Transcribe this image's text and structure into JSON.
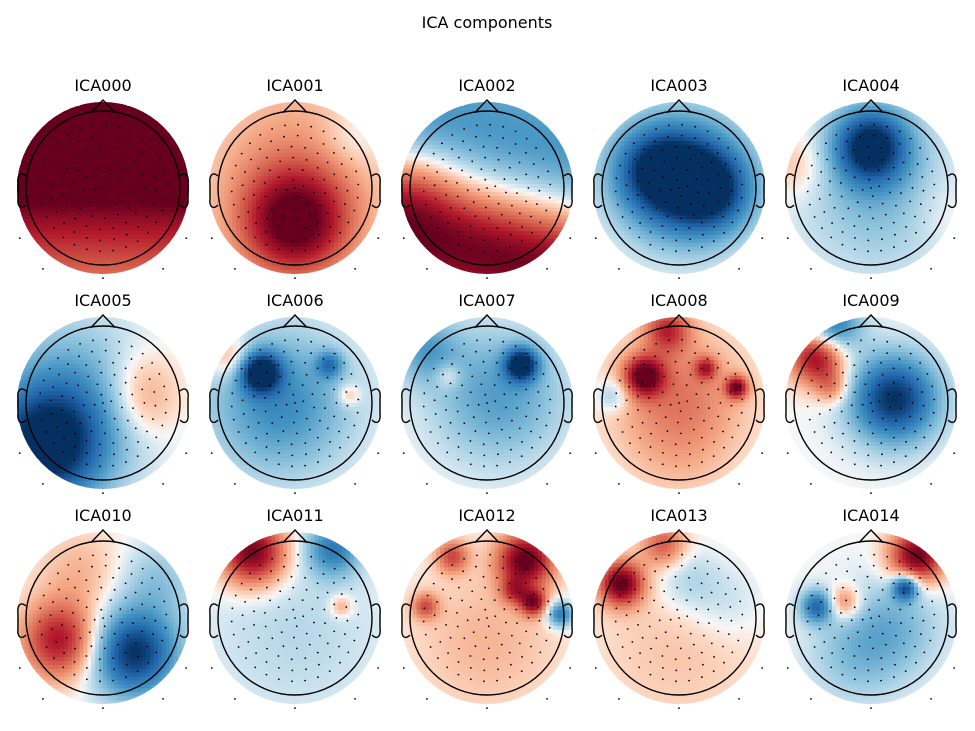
{
  "chart_data": {
    "type": "topomap",
    "title": "ICA components",
    "colormap": "RdBu_r",
    "colors": {
      "positive": "#67001f",
      "zero": "#f7f7f7",
      "negative": "#053061"
    },
    "components": [
      {
        "name": "ICA000",
        "blobs": [
          {
            "x": 0.0,
            "y": 0.85,
            "w": -0.6,
            "s": 0.0,
            "v": 1.0
          },
          {
            "x": 0.0,
            "y": 0.3,
            "w": -0.9,
            "s": 0.0,
            "v": 0.55
          },
          {
            "x": 0.0,
            "y": -0.6,
            "w": -0.9,
            "s": 0.0,
            "v": 0.35
          }
        ]
      },
      {
        "name": "ICA001",
        "blobs": [
          {
            "x": 0.0,
            "y": -0.45,
            "w": 0.5,
            "s": 0.0,
            "v": 1.0
          },
          {
            "x": 0.0,
            "y": 0.4,
            "w": 0.9,
            "s": 0.0,
            "v": 0.25
          },
          {
            "x": 0.75,
            "y": 0.65,
            "w": 0.3,
            "s": 0.0,
            "v": -0.15
          }
        ]
      },
      {
        "name": "ICA002",
        "blobs": [
          {
            "x": 0.0,
            "y": -0.85,
            "w": -0.6,
            "s": -0.25,
            "v": 1.0
          },
          {
            "x": 0.0,
            "y": 0.75,
            "w": -0.7,
            "s": -0.25,
            "v": -0.5
          },
          {
            "x": -0.9,
            "y": 0.0,
            "w": 0.4,
            "s": 0.0,
            "v": 0.2
          }
        ]
      },
      {
        "name": "ICA003",
        "blobs": [
          {
            "x": 0.1,
            "y": 0.1,
            "w": 0.55,
            "s": 0.0,
            "v": -1.0
          },
          {
            "x": -0.35,
            "y": 0.25,
            "w": 0.4,
            "s": 0.0,
            "v": -0.55
          },
          {
            "x": 0.45,
            "y": -0.05,
            "w": 0.35,
            "s": 0.0,
            "v": -0.5
          }
        ]
      },
      {
        "name": "ICA004",
        "blobs": [
          {
            "x": 0.0,
            "y": 0.55,
            "w": 0.35,
            "s": 0.0,
            "v": -1.0
          },
          {
            "x": 0.1,
            "y": -0.1,
            "w": 0.7,
            "s": 0.0,
            "v": -0.3
          },
          {
            "x": -0.95,
            "y": 0.3,
            "w": 0.3,
            "s": 0.0,
            "v": 0.2
          },
          {
            "x": 0.95,
            "y": -0.3,
            "w": 0.35,
            "s": 0.0,
            "v": 0.1
          }
        ]
      },
      {
        "name": "ICA005",
        "blobs": [
          {
            "x": -0.75,
            "y": -0.6,
            "w": 0.55,
            "s": 0.0,
            "v": -1.0
          },
          {
            "x": -0.4,
            "y": 0.1,
            "w": 0.7,
            "s": 0.0,
            "v": -0.4
          },
          {
            "x": 0.5,
            "y": 0.25,
            "w": 0.35,
            "s": 0.0,
            "v": 0.25
          },
          {
            "x": 0.55,
            "y": -0.1,
            "w": 0.3,
            "s": 0.0,
            "v": 0.15
          }
        ]
      },
      {
        "name": "ICA006",
        "blobs": [
          {
            "x": -0.45,
            "y": 0.4,
            "w": 0.18,
            "s": 0.0,
            "v": -1.0
          },
          {
            "x": -0.2,
            "y": 0.0,
            "w": 0.65,
            "s": 0.0,
            "v": -0.55
          },
          {
            "x": 0.45,
            "y": 0.5,
            "w": 0.12,
            "s": 0.0,
            "v": -0.5
          },
          {
            "x": -0.85,
            "y": 0.6,
            "w": 0.2,
            "s": 0.0,
            "v": 0.35
          },
          {
            "x": 0.7,
            "y": 0.1,
            "w": 0.1,
            "s": 0.0,
            "v": 0.3
          }
        ]
      },
      {
        "name": "ICA007",
        "blobs": [
          {
            "x": 0.45,
            "y": 0.5,
            "w": 0.15,
            "s": 0.0,
            "v": -1.0
          },
          {
            "x": 0.15,
            "y": 0.1,
            "w": 0.6,
            "s": 0.0,
            "v": -0.45
          },
          {
            "x": -0.5,
            "y": 0.35,
            "w": 0.12,
            "s": 0.0,
            "v": 0.25
          },
          {
            "x": -0.8,
            "y": 0.7,
            "w": 0.3,
            "s": 0.0,
            "v": -0.4
          }
        ]
      },
      {
        "name": "ICA008",
        "blobs": [
          {
            "x": -0.45,
            "y": 0.35,
            "w": 0.18,
            "s": 0.0,
            "v": 0.9
          },
          {
            "x": 0.0,
            "y": 0.1,
            "w": 0.6,
            "s": 0.0,
            "v": 0.4
          },
          {
            "x": 0.75,
            "y": 0.2,
            "w": 0.1,
            "s": 0.0,
            "v": 0.85
          },
          {
            "x": 0.35,
            "y": 0.45,
            "w": 0.1,
            "s": 0.0,
            "v": 0.55
          },
          {
            "x": -0.15,
            "y": 0.95,
            "w": 0.2,
            "s": 0.0,
            "v": 0.6
          },
          {
            "x": -0.85,
            "y": 0.1,
            "w": 0.15,
            "s": 0.0,
            "v": -0.3
          },
          {
            "x": 0.0,
            "y": -0.75,
            "w": 0.5,
            "s": 0.0,
            "v": 0.1
          }
        ]
      },
      {
        "name": "ICA009",
        "blobs": [
          {
            "x": 0.3,
            "y": 0.05,
            "w": 0.4,
            "s": 0.0,
            "v": -1.0
          },
          {
            "x": -0.7,
            "y": 0.6,
            "w": 0.25,
            "s": 0.0,
            "v": 0.9
          },
          {
            "x": -0.5,
            "y": 1.0,
            "w": 0.25,
            "s": 0.0,
            "v": -0.7
          },
          {
            "x": -0.5,
            "y": 0.2,
            "w": 0.15,
            "s": 0.0,
            "v": 0.35
          }
        ]
      },
      {
        "name": "ICA010",
        "blobs": [
          {
            "x": 0.4,
            "y": -0.45,
            "w": 0.4,
            "s": 0.0,
            "v": -1.0
          },
          {
            "x": -0.55,
            "y": -0.3,
            "w": 0.35,
            "s": 0.0,
            "v": 0.8
          },
          {
            "x": 0.7,
            "y": 0.5,
            "w": 0.35,
            "s": 0.0,
            "v": -0.25
          },
          {
            "x": -0.3,
            "y": 0.6,
            "w": 0.4,
            "s": 0.0,
            "v": 0.2
          }
        ]
      },
      {
        "name": "ICA011",
        "blobs": [
          {
            "x": -0.55,
            "y": 0.85,
            "w": 0.3,
            "s": 0.0,
            "v": 1.0
          },
          {
            "x": 0.5,
            "y": 0.9,
            "w": 0.25,
            "s": 0.0,
            "v": -0.6
          },
          {
            "x": 0.0,
            "y": -0.2,
            "w": 0.8,
            "s": 0.0,
            "v": -0.15
          },
          {
            "x": 0.6,
            "y": 0.15,
            "w": 0.1,
            "s": 0.0,
            "v": 0.3
          }
        ]
      },
      {
        "name": "ICA012",
        "blobs": [
          {
            "x": 0.5,
            "y": 0.75,
            "w": 0.25,
            "s": 0.0,
            "v": 1.0
          },
          {
            "x": 0.6,
            "y": 0.2,
            "w": 0.12,
            "s": 0.0,
            "v": 0.8
          },
          {
            "x": -0.45,
            "y": 0.8,
            "w": 0.15,
            "s": 0.0,
            "v": 0.55
          },
          {
            "x": -0.8,
            "y": 0.15,
            "w": 0.12,
            "s": 0.0,
            "v": 0.5
          },
          {
            "x": 0.35,
            "y": 0.35,
            "w": 0.12,
            "s": 0.0,
            "v": 0.45
          },
          {
            "x": 0.95,
            "y": 0.05,
            "w": 0.12,
            "s": 0.0,
            "v": -0.7
          },
          {
            "x": 0.0,
            "y": -0.3,
            "w": 0.7,
            "s": 0.0,
            "v": 0.2
          }
        ]
      },
      {
        "name": "ICA013",
        "blobs": [
          {
            "x": -0.75,
            "y": 0.45,
            "w": 0.2,
            "s": 0.0,
            "v": 1.0
          },
          {
            "x": -0.2,
            "y": 0.95,
            "w": 0.2,
            "s": 0.0,
            "v": 0.5
          },
          {
            "x": 0.1,
            "y": 0.5,
            "w": 0.3,
            "s": 0.0,
            "v": -0.2
          },
          {
            "x": 0.6,
            "y": 0.2,
            "w": 0.35,
            "s": 0.0,
            "v": -0.15
          },
          {
            "x": 0.0,
            "y": -0.4,
            "w": 0.8,
            "s": 0.0,
            "v": 0.15
          }
        ]
      },
      {
        "name": "ICA014",
        "blobs": [
          {
            "x": 0.6,
            "y": 0.8,
            "w": 0.25,
            "s": 0.0,
            "v": 1.0
          },
          {
            "x": 0.45,
            "y": 0.4,
            "w": 0.12,
            "s": 0.0,
            "v": -0.9
          },
          {
            "x": -0.7,
            "y": 0.15,
            "w": 0.15,
            "s": 0.0,
            "v": -0.7
          },
          {
            "x": -0.35,
            "y": 0.2,
            "w": 0.15,
            "s": 0.0,
            "v": 0.45
          },
          {
            "x": 0.3,
            "y": -0.1,
            "w": 0.45,
            "s": 0.0,
            "v": -0.3
          },
          {
            "x": -0.2,
            "y": -0.5,
            "w": 0.45,
            "s": 0.0,
            "v": -0.25
          }
        ]
      }
    ]
  }
}
